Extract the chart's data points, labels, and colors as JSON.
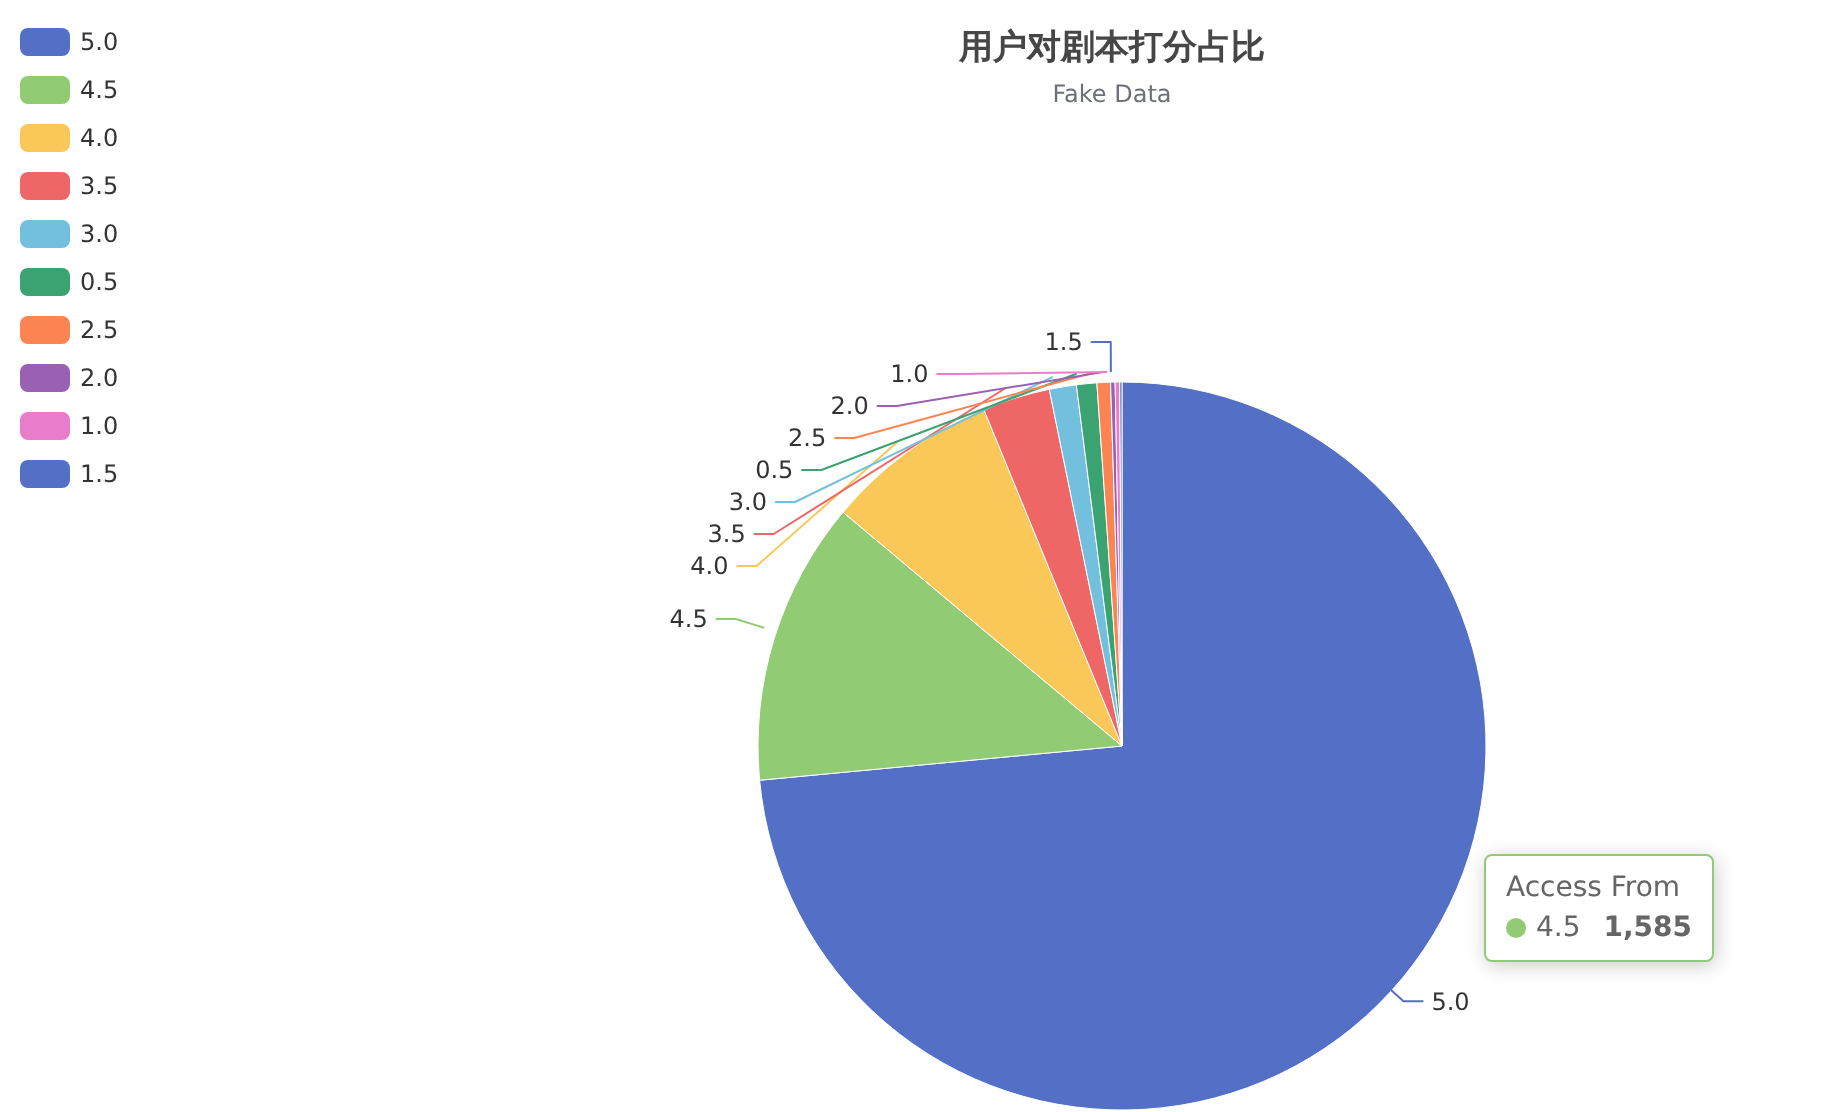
{
  "chart_data": {
    "type": "pie",
    "title": "用户对剧本打分占比",
    "subtitle": "Fake Data",
    "categories": [
      "5.0",
      "4.5",
      "4.0",
      "3.5",
      "3.0",
      "0.5",
      "2.5",
      "2.0",
      "1.0",
      "1.5"
    ],
    "values": [
      73.5,
      12.6,
      7.7,
      3.0,
      1.2,
      0.9,
      0.6,
      0.2,
      0.2,
      0.1
    ],
    "colors": [
      "#5470c6",
      "#91cc75",
      "#fac858",
      "#ee6666",
      "#73c0de",
      "#3ba272",
      "#fc8452",
      "#9a60b4",
      "#ea7ccc",
      "#5470c6"
    ],
    "legend": "top left",
    "annotations": [
      "Access From",
      {
        "text": "1,585",
        "x": "4.5"
      }
    ]
  }
}
